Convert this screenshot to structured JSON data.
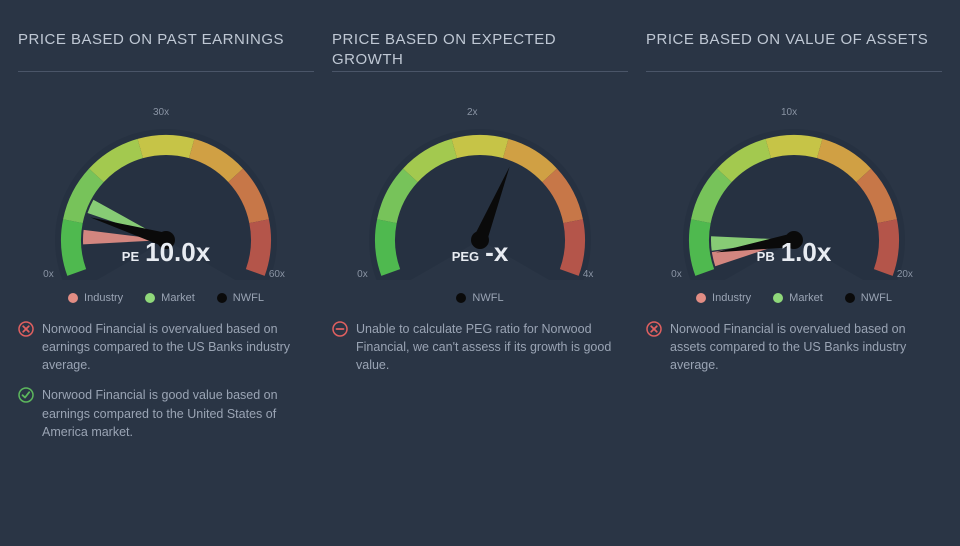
{
  "background_color": "#2a3545",
  "panels": [
    {
      "title": "PRICE BASED ON PAST EARNINGS",
      "gauge": {
        "type": "gauge",
        "min": 0,
        "mid": 30,
        "max": 60,
        "tick_min_label": "0x",
        "tick_mid_label": "30x",
        "tick_max_label": "60x",
        "needle_value": 10.0,
        "metric_label": "PE",
        "metric_value": "10.0x",
        "arc_colors": [
          "#4fb94f",
          "#77c35a",
          "#a3c94f",
          "#c6c447",
          "#d0a044",
          "#c77748",
          "#b4554a"
        ],
        "markers": [
          {
            "name": "industry",
            "value": 6,
            "color": "#e28d84"
          },
          {
            "name": "market",
            "value": 12,
            "color": "#8fd87a"
          }
        ],
        "bg": "#202a38",
        "needle_color": "#0a0a0a",
        "hub_color": "#0a0a0a",
        "tick_fontsize": 10,
        "value_fontsize": 26
      },
      "legend": [
        {
          "label": "Industry",
          "color": "#e28d84"
        },
        {
          "label": "Market",
          "color": "#8fd87a"
        },
        {
          "label": "NWFL",
          "color": "#0a0a0a"
        }
      ],
      "notes": [
        {
          "icon": "cross",
          "icon_color": "#e06060",
          "text": "Norwood Financial is overvalued based on earnings compared to the US Banks industry average."
        },
        {
          "icon": "check",
          "icon_color": "#5db85d",
          "text": "Norwood Financial is good value based on earnings compared to the United States of America market."
        }
      ]
    },
    {
      "title": "PRICE BASED ON EXPECTED GROWTH",
      "gauge": {
        "type": "gauge",
        "min": 0,
        "mid": 2,
        "max": 4,
        "tick_min_label": "0x",
        "tick_mid_label": "2x",
        "tick_max_label": "4x",
        "needle_value": 2.4,
        "metric_label": "PEG",
        "metric_value": "-x",
        "arc_colors": [
          "#4fb94f",
          "#77c35a",
          "#a3c94f",
          "#c6c447",
          "#d0a044",
          "#c77748",
          "#b4554a"
        ],
        "markers": [],
        "bg": "#202a38",
        "needle_color": "#0a0a0a",
        "hub_color": "#0a0a0a",
        "tick_fontsize": 10,
        "value_fontsize": 26
      },
      "legend": [
        {
          "label": "NWFL",
          "color": "#0a0a0a"
        }
      ],
      "notes": [
        {
          "icon": "dash",
          "icon_color": "#e06060",
          "text": "Unable to calculate PEG ratio for Norwood Financial, we can't assess if its growth is good value."
        }
      ]
    },
    {
      "title": "PRICE BASED ON VALUE OF ASSETS",
      "gauge": {
        "type": "gauge",
        "min": 0,
        "mid": 10,
        "max": 20,
        "tick_min_label": "0x",
        "tick_mid_label": "10x",
        "tick_max_label": "20x",
        "needle_value": 1.0,
        "metric_label": "PB",
        "metric_value": "1.0x",
        "arc_colors": [
          "#4fb94f",
          "#77c35a",
          "#a3c94f",
          "#c6c447",
          "#d0a044",
          "#c77748",
          "#b4554a"
        ],
        "markers": [
          {
            "name": "industry",
            "value": 0.6,
            "color": "#e28d84"
          },
          {
            "name": "market",
            "value": 1.6,
            "color": "#8fd87a"
          }
        ],
        "bg": "#202a38",
        "needle_color": "#0a0a0a",
        "hub_color": "#0a0a0a",
        "tick_fontsize": 10,
        "value_fontsize": 26
      },
      "legend": [
        {
          "label": "Industry",
          "color": "#e28d84"
        },
        {
          "label": "Market",
          "color": "#8fd87a"
        },
        {
          "label": "NWFL",
          "color": "#0a0a0a"
        }
      ],
      "notes": [
        {
          "icon": "cross",
          "icon_color": "#e06060",
          "text": "Norwood Financial is overvalued based on assets compared to the US Banks industry average."
        }
      ]
    }
  ]
}
